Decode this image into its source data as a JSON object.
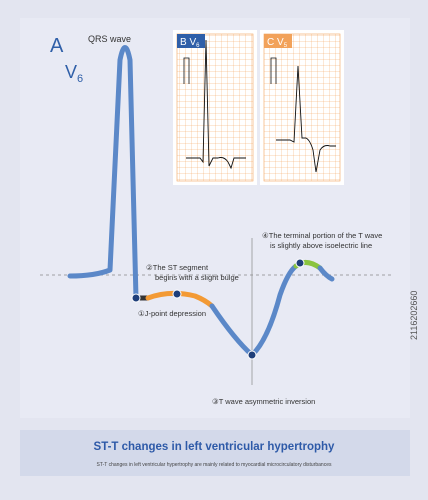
{
  "panel_a": {
    "letter": "A",
    "lead": "V",
    "lead_sub": "6",
    "qrs_label": "QRS wave"
  },
  "panel_b": {
    "letter": "B",
    "lead": "V",
    "lead_sub": "6"
  },
  "panel_c": {
    "letter": "C",
    "lead": "V",
    "lead_sub": "5"
  },
  "annotations": [
    {
      "number": "①",
      "lines": [
        "J-point depression"
      ]
    },
    {
      "number": "②",
      "lines": [
        "The ST segment",
        "begins with a slight bulge"
      ]
    },
    {
      "number": "③",
      "lines": [
        "T wave asymmetric inversion"
      ]
    },
    {
      "number": "④",
      "lines": [
        "The terminal portion of the T wave",
        "is slightly above isoelectric line"
      ]
    }
  ],
  "footer": {
    "title": "ST-T changes in left ventricular hypertrophy",
    "subtitle": "ST-T changes in left ventricular hypertrophy are mainly related to myocardial microcirculatory disturbances"
  },
  "watermark": "2116202660"
}
